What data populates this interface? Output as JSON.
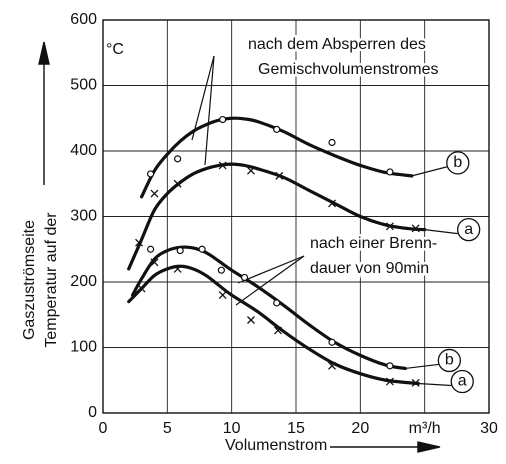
{
  "chart_data": {
    "type": "line",
    "xlabel": "Volumenstrom",
    "ylabel": [
      "Temperatur auf der",
      "Gaszuströmseite"
    ],
    "yunit": "°C",
    "xlim": [
      0,
      30
    ],
    "ylim": [
      0,
      600
    ],
    "xticks": [
      0,
      5,
      10,
      15,
      20,
      {
        "value": 25,
        "label": "m³/h"
      },
      30
    ],
    "yticks": [
      0,
      100,
      200,
      300,
      400,
      500,
      600
    ],
    "grid": true,
    "color": "#111111",
    "annotations": [
      [
        "nach dem Absperren des",
        "Gemischvolumenstromes"
      ],
      [
        "nach einer Brenn-",
        "dauer von 90min"
      ]
    ],
    "series": [
      {
        "name": "b",
        "x": [
          3,
          4,
          5,
          6,
          7,
          8,
          9,
          10,
          11,
          12,
          14,
          16,
          18,
          20,
          22,
          24
        ],
        "values": [
          330,
          370,
          395,
          415,
          430,
          440,
          447,
          450,
          449,
          445,
          430,
          410,
          393,
          378,
          367,
          362
        ]
      },
      {
        "name": "a",
        "x": [
          2,
          3,
          4,
          5,
          6,
          7,
          8,
          9,
          10,
          11,
          12,
          14,
          16,
          18,
          20,
          22,
          24,
          25
        ],
        "values": [
          220,
          265,
          310,
          335,
          352,
          365,
          373,
          378,
          380,
          378,
          373,
          360,
          340,
          320,
          300,
          287,
          281,
          280
        ]
      },
      {
        "name": "b",
        "x": [
          2.3,
          3,
          4,
          5,
          6,
          7,
          8,
          9,
          10,
          12,
          14,
          16,
          18,
          20,
          22,
          23.5
        ],
        "values": [
          180,
          205,
          235,
          248,
          253,
          252,
          245,
          232,
          218,
          193,
          165,
          135,
          108,
          88,
          73,
          68
        ]
      },
      {
        "name": "a",
        "x": [
          2,
          3,
          4,
          5,
          6,
          7,
          8,
          9,
          10,
          12,
          14,
          16,
          18,
          20,
          22,
          24.5
        ],
        "values": [
          170,
          190,
          210,
          220,
          224,
          220,
          210,
          195,
          180,
          155,
          125,
          98,
          75,
          60,
          50,
          45
        ]
      },
      {
        "marker": "o",
        "x": [
          3.7,
          5.8,
          9.3,
          13.5,
          17.8,
          22.3
        ],
        "values": [
          365,
          388,
          448,
          433,
          413,
          368
        ]
      },
      {
        "marker": "x",
        "x": [
          2.8,
          4,
          5.8,
          9.3,
          11.5,
          13.7,
          17.8,
          22.3,
          24.3
        ],
        "values": [
          260,
          335,
          350,
          378,
          370,
          362,
          320,
          285,
          282
        ]
      },
      {
        "marker": "o",
        "x": [
          3.7,
          6,
          7.7,
          9.2,
          11,
          13.5,
          17.8,
          22.3
        ],
        "values": [
          250,
          248,
          250,
          218,
          207,
          168,
          108,
          72
        ]
      },
      {
        "marker": "x",
        "x": [
          3,
          4,
          5.8,
          9.3,
          11.5,
          13.6,
          17.8,
          22.3,
          24.3
        ],
        "values": [
          190,
          230,
          220,
          180,
          142,
          126,
          72,
          48,
          46
        ]
      }
    ]
  }
}
